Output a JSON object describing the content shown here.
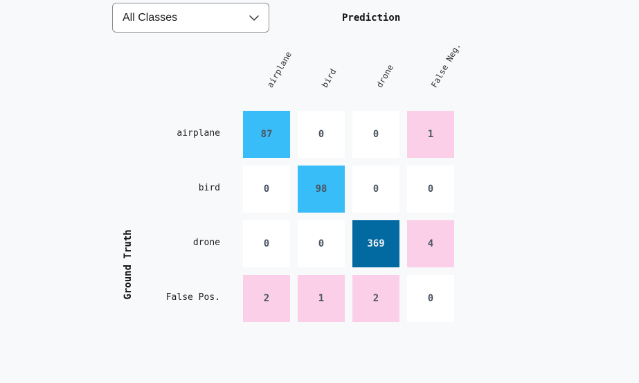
{
  "class_filter": {
    "selected": "All Classes",
    "icon": "chevron-down-icon"
  },
  "chart_data": {
    "type": "heatmap",
    "title": "",
    "xlabel": "Prediction",
    "ylabel": "Ground Truth",
    "columns": [
      "airplane",
      "bird",
      "drone",
      "False Neg."
    ],
    "rows": [
      "airplane",
      "bird",
      "drone",
      "False Pos."
    ],
    "values": [
      [
        87,
        0,
        0,
        1
      ],
      [
        0,
        98,
        0,
        0
      ],
      [
        0,
        0,
        369,
        4
      ],
      [
        2,
        1,
        2,
        0
      ]
    ]
  },
  "colors": {
    "zero_cell": "#ffffff",
    "error_cell": "#fbcfe8",
    "correct_cell": "#38bdf8",
    "correct_cell_high": "#0369a1",
    "text_dark": "#4b5563",
    "text_light": "#e6eef5"
  }
}
